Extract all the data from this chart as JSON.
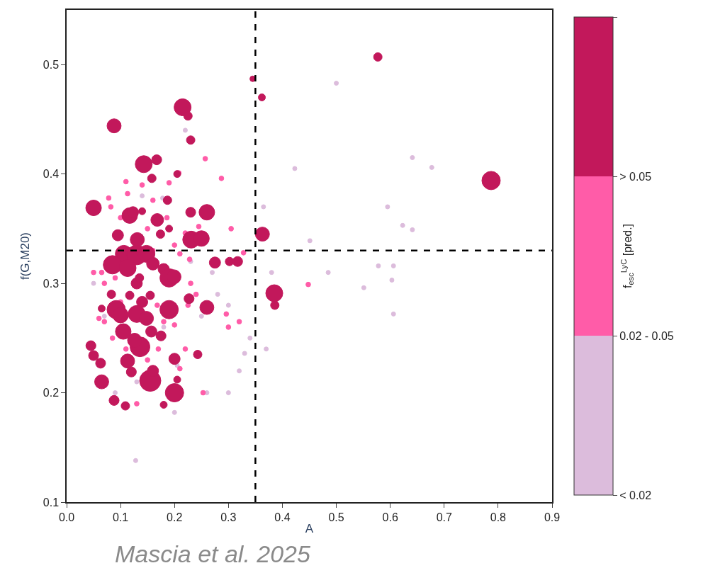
{
  "chart_data": {
    "type": "bubble",
    "xlabel": "A",
    "ylabel": "f(G,M20)",
    "clabel": "f$_{esc}$$^{LyC}$ [pred.]",
    "annotations": [
      "Mascia et al. 2025"
    ],
    "xlim": [
      0,
      0.9
    ],
    "xticks": [
      {
        "value": 0,
        "label": "0.0"
      },
      0.1,
      0.2,
      0.3,
      0.4,
      0.5,
      0.6,
      0.7,
      0.8,
      0.9
    ],
    "ylim": [
      0.1,
      0.55
    ],
    "yticks": [
      0.1,
      0.2,
      0.3,
      0.4,
      0.5
    ],
    "legend": false,
    "marker": "circle",
    "ref_lines": [
      {
        "axis": "x",
        "value": 0.35,
        "line_style": "dashed",
        "color": "#000000"
      },
      {
        "axis": "y",
        "value": 0.33,
        "line_style": "dashed",
        "color": "#000000"
      }
    ],
    "series": [
      {
        "name": "< 0.02",
        "color": "#dcbcdc",
        "x": [
          0.128,
          0.5,
          0.641,
          0.677,
          0.595,
          0.623,
          0.641,
          0.451,
          0.578,
          0.606,
          0.485,
          0.551,
          0.603,
          0.606,
          0.423,
          0.365,
          0.38,
          0.37,
          0.33,
          0.34,
          0.3,
          0.28,
          0.25,
          0.2,
          0.05,
          0.07,
          0.18,
          0.23,
          0.27,
          0.32,
          0.26,
          0.09,
          0.13,
          0.22,
          0.14,
          0.178,
          0.3,
          0.205
        ],
        "values": [
          0.138,
          0.483,
          0.415,
          0.406,
          0.37,
          0.353,
          0.349,
          0.339,
          0.316,
          0.316,
          0.31,
          0.296,
          0.303,
          0.272,
          0.405,
          0.37,
          0.31,
          0.24,
          0.236,
          0.25,
          0.28,
          0.29,
          0.27,
          0.182,
          0.3,
          0.27,
          0.26,
          0.32,
          0.31,
          0.22,
          0.2,
          0.2,
          0.21,
          0.44,
          0.38,
          0.378,
          0.2,
          0.225
        ],
        "sizes": [
          0.04,
          0.04,
          0.04,
          0.04,
          0.04,
          0.04,
          0.04,
          0.04,
          0.04,
          0.04,
          0.04,
          0.04,
          0.04,
          0.04,
          0.04,
          0.04,
          0.04,
          0.04,
          0.04,
          0.04,
          0.04,
          0.04,
          0.04,
          0.04,
          0.04,
          0.04,
          0.04,
          0.04,
          0.04,
          0.04,
          0.04,
          0.04,
          0.04,
          0.04,
          0.04,
          0.04,
          0.04,
          0.04
        ]
      },
      {
        "name": "0.02 - 0.05",
        "color": "#ff5ca8",
        "x": [
          0.208,
          0.257,
          0.287,
          0.245,
          0.113,
          0.078,
          0.082,
          0.11,
          0.14,
          0.186,
          0.16,
          0.19,
          0.305,
          0.328,
          0.21,
          0.228,
          0.05,
          0.065,
          0.07,
          0.09,
          0.1,
          0.06,
          0.07,
          0.168,
          0.18,
          0.2,
          0.225,
          0.24,
          0.32,
          0.296,
          0.21,
          0.253,
          0.17,
          0.22,
          0.448,
          0.3,
          0.16,
          0.2,
          0.15,
          0.1,
          0.22,
          0.11,
          0.085,
          0.13,
          0.15,
          0.23
        ],
        "values": [
          0.401,
          0.414,
          0.396,
          0.352,
          0.382,
          0.378,
          0.37,
          0.393,
          0.39,
          0.36,
          0.376,
          0.392,
          0.35,
          0.328,
          0.327,
          0.322,
          0.31,
          0.31,
          0.3,
          0.305,
          0.283,
          0.268,
          0.265,
          0.28,
          0.265,
          0.262,
          0.28,
          0.29,
          0.265,
          0.272,
          0.222,
          0.2,
          0.24,
          0.24,
          0.299,
          0.26,
          0.33,
          0.335,
          0.35,
          0.36,
          0.346,
          0.24,
          0.25,
          0.19,
          0.23,
          0.3
        ],
        "sizes": [
          0.05,
          0.05,
          0.05,
          0.05,
          0.05,
          0.05,
          0.05,
          0.05,
          0.05,
          0.05,
          0.05,
          0.05,
          0.05,
          0.05,
          0.05,
          0.05,
          0.05,
          0.05,
          0.05,
          0.05,
          0.05,
          0.05,
          0.05,
          0.05,
          0.05,
          0.05,
          0.05,
          0.05,
          0.05,
          0.05,
          0.05,
          0.05,
          0.05,
          0.05,
          0.05,
          0.05,
          0.05,
          0.05,
          0.05,
          0.05,
          0.05,
          0.05,
          0.05,
          0.05,
          0.05,
          0.05
        ]
      },
      {
        "name": "> 0.05",
        "color": "#c2185b",
        "x": [
          0.215,
          0.225,
          0.088,
          0.23,
          0.143,
          0.167,
          0.158,
          0.205,
          0.05,
          0.117,
          0.123,
          0.168,
          0.187,
          0.23,
          0.26,
          0.095,
          0.14,
          0.231,
          0.25,
          0.131,
          0.106,
          0.13,
          0.148,
          0.085,
          0.113,
          0.16,
          0.18,
          0.19,
          0.199,
          0.275,
          0.302,
          0.317,
          0.363,
          0.345,
          0.362,
          0.577,
          0.787,
          0.385,
          0.386,
          0.13,
          0.092,
          0.1,
          0.105,
          0.14,
          0.13,
          0.148,
          0.157,
          0.113,
          0.136,
          0.126,
          0.155,
          0.16,
          0.065,
          0.2,
          0.19,
          0.2,
          0.227,
          0.26,
          0.243,
          0.063,
          0.045,
          0.05,
          0.088,
          0.109,
          0.18,
          0.205,
          0.083,
          0.117,
          0.155,
          0.175,
          0.12,
          0.065,
          0.19,
          0.174,
          0.135
        ],
        "values": [
          0.461,
          0.453,
          0.444,
          0.431,
          0.409,
          0.413,
          0.396,
          0.4,
          0.369,
          0.362,
          0.365,
          0.358,
          0.376,
          0.365,
          0.365,
          0.344,
          0.366,
          0.34,
          0.341,
          0.34,
          0.327,
          0.326,
          0.327,
          0.317,
          0.314,
          0.318,
          0.313,
          0.305,
          0.306,
          0.319,
          0.32,
          0.32,
          0.345,
          0.487,
          0.47,
          0.507,
          0.394,
          0.291,
          0.28,
          0.3,
          0.276,
          0.271,
          0.256,
          0.283,
          0.272,
          0.268,
          0.256,
          0.229,
          0.242,
          0.248,
          0.211,
          0.22,
          0.21,
          0.2,
          0.276,
          0.231,
          0.286,
          0.278,
          0.235,
          0.227,
          0.243,
          0.234,
          0.193,
          0.188,
          0.189,
          0.212,
          0.29,
          0.289,
          0.289,
          0.252,
          0.219,
          0.277,
          0.35,
          0.345,
          0.305
        ],
        "sizes": [
          0.64,
          0.16,
          0.44,
          0.16,
          0.64,
          0.22,
          0.16,
          0.11,
          0.54,
          0.54,
          0.28,
          0.36,
          0.16,
          0.22,
          0.54,
          0.28,
          0.11,
          0.64,
          0.54,
          0.44,
          0.64,
          0.87,
          0.64,
          0.75,
          0.64,
          0.36,
          0.28,
          0.75,
          0.44,
          0.28,
          0.16,
          0.22,
          0.44,
          0.07,
          0.11,
          0.16,
          0.75,
          0.64,
          0.16,
          0.28,
          0.75,
          0.54,
          0.54,
          0.28,
          0.64,
          0.44,
          0.28,
          0.44,
          0.87,
          0.44,
          1,
          0.28,
          0.44,
          0.75,
          0.75,
          0.28,
          0.22,
          0.44,
          0.16,
          0.22,
          0.22,
          0.22,
          0.22,
          0.16,
          0.11,
          0.11,
          0.16,
          0.16,
          0.16,
          0.22,
          0.22,
          0.11,
          0.11,
          0.16,
          0.16
        ]
      }
    ]
  }
}
